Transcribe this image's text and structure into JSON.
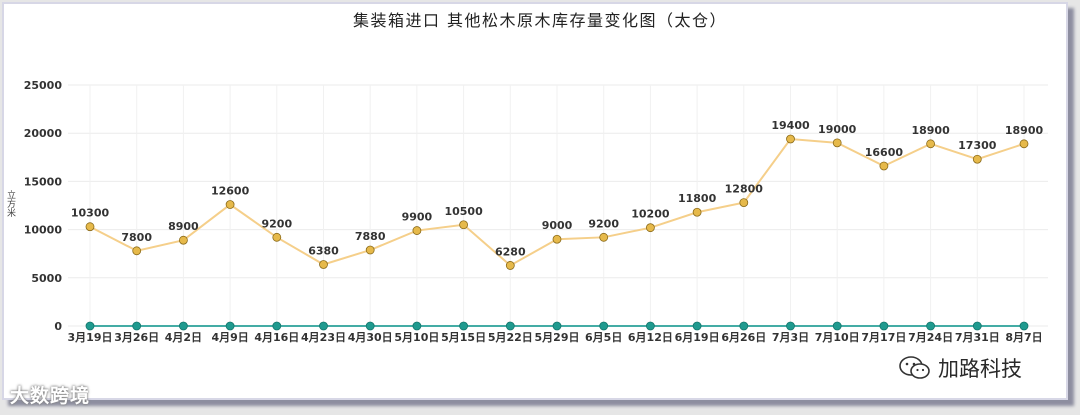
{
  "chart_data": {
    "type": "line",
    "title": "集装箱进口  其他松木原木库存量变化图（太仓）",
    "ylabel": "立方米",
    "ylim": [
      0,
      25000
    ],
    "yticks": [
      0,
      5000,
      10000,
      15000,
      20000,
      25000
    ],
    "grid": true,
    "categories": [
      "3月19日",
      "3月26日",
      "4月2日",
      "4月9日",
      "4月16日",
      "4月23日",
      "4月30日",
      "5月10日",
      "5月15日",
      "5月22日",
      "5月29日",
      "6月5日",
      "6月12日",
      "6月19日",
      "6月26日",
      "7月3日",
      "7月10日",
      "7月17日",
      "7月24日",
      "7月31日",
      "8月7日"
    ],
    "series": [
      {
        "values": [
          10300,
          7800,
          8900,
          12600,
          9200,
          6380,
          7880,
          9900,
          10500,
          6280,
          9000,
          9200,
          10200,
          11800,
          12800,
          19400,
          19000,
          16600,
          18900,
          17300,
          18900
        ],
        "color": "#f5cf8a",
        "marker_color": "#e6b94a",
        "data_labels": true
      },
      {
        "values": [
          0,
          0,
          0,
          0,
          0,
          0,
          0,
          0,
          0,
          0,
          0,
          0,
          0,
          0,
          0,
          0,
          0,
          0,
          0,
          0,
          0
        ],
        "color": "#2aa198",
        "marker_color": "#1f9a8f",
        "data_labels": false
      }
    ]
  },
  "watermarks": {
    "left": "大数跨境",
    "right": "加路科技"
  }
}
